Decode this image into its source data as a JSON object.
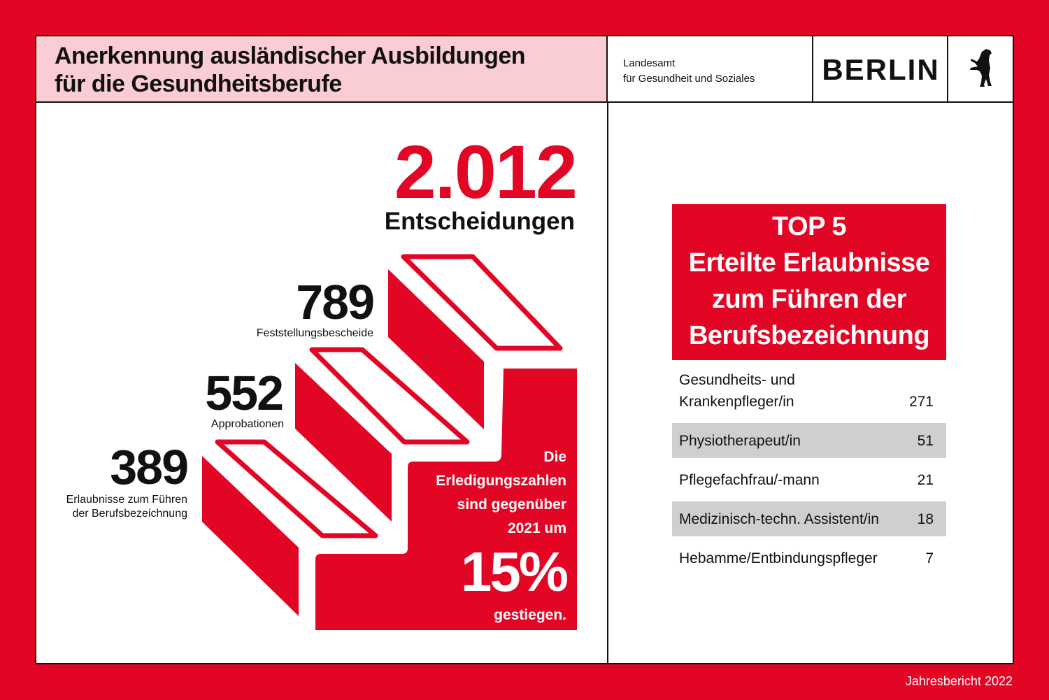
{
  "header": {
    "title_line1": "Anerkennung ausländischer Ausbildungen",
    "title_line2": "für die Gesundheitsberufe",
    "org_line1": "Landesamt",
    "org_line2": "für Gesundheit und Soziales",
    "city": "BERLIN",
    "logo": "berlin-bear-icon"
  },
  "total": {
    "value": "2.012",
    "label": "Entscheidungen"
  },
  "stats": [
    {
      "value": "789",
      "label": "Feststellungsbescheide"
    },
    {
      "value": "552",
      "label": "Approbationen"
    },
    {
      "value": "389",
      "label_line1": "Erlaubnisse zum Führen",
      "label_line2": "der Berufsbezeichnung"
    }
  ],
  "growth": {
    "l1": "Die",
    "l2": "Erledigungszahlen",
    "l3": "sind gegenüber",
    "l4": "2021 um",
    "value": "15%",
    "l5": "gestiegen."
  },
  "top5": {
    "l1": "TOP 5",
    "l2": "Erteilte Erlaubnisse",
    "l3": "zum Führen der",
    "l4": "Berufsbezeichnung",
    "rows": [
      {
        "name_line1": "Gesundheits- und",
        "name_line2": "Krankenpfleger/in",
        "value": "271"
      },
      {
        "name": "Physiotherapeut/in",
        "value": "51"
      },
      {
        "name": "Pflegefachfrau/-mann",
        "value": "21"
      },
      {
        "name": "Medizinisch-techn. Assistent/in",
        "value": "18"
      },
      {
        "name": "Hebamme/Entbindungspfleger",
        "value": "7"
      }
    ]
  },
  "footer": "Jahresbericht 2022",
  "colors": {
    "red": "#e30524",
    "pink": "#f9cdd3",
    "gray": "#cfcfcf"
  }
}
